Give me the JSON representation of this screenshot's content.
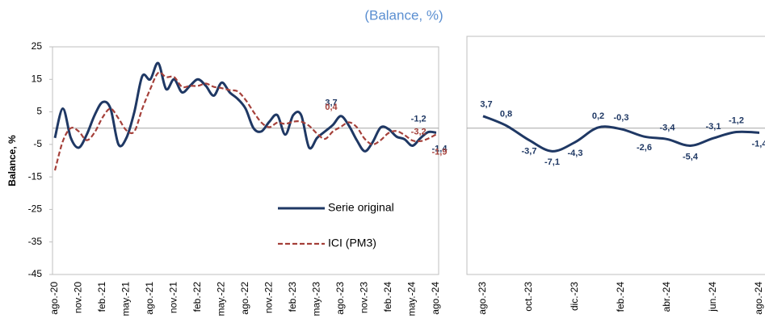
{
  "chart_data": [
    {
      "type": "line",
      "subtitle": "(Balance, %)",
      "y_label": "Balance, %",
      "categories": [
        "ago.-20",
        null,
        null,
        "nov.-20",
        null,
        null,
        "feb.-21",
        null,
        null,
        "may.-21",
        null,
        null,
        "ago.-21",
        null,
        null,
        "nov.-21",
        null,
        null,
        "feb.-22",
        null,
        null,
        "may.-22",
        null,
        null,
        "ago.-22",
        null,
        null,
        "nov.-22",
        null,
        null,
        "feb.-23",
        null,
        null,
        "may.-23",
        null,
        null,
        "ago.-23",
        null,
        null,
        "nov.-23",
        null,
        null,
        "feb.-24",
        null,
        null,
        "may.-24",
        null,
        null,
        "ago.-24"
      ],
      "series": [
        {
          "name": "Serie original",
          "color": "#1f3864",
          "dash": false,
          "values": [
            -3,
            6,
            -3,
            -6,
            -2,
            4,
            8,
            6,
            -5,
            -3,
            5,
            16,
            15,
            20,
            12,
            15,
            11,
            13,
            15,
            13,
            10,
            14,
            11,
            9,
            6,
            0,
            -1,
            2,
            4,
            -2,
            4,
            4,
            -6,
            -3,
            -1,
            1,
            3.7,
            0.8,
            -3.7,
            -7.1,
            -4.3,
            0.2,
            -0.3,
            -2.6,
            -3.4,
            -5.4,
            -3.1,
            -1.2,
            -1.4
          ],
          "value_labels": [
            null,
            null,
            null,
            null,
            null,
            null,
            null,
            null,
            null,
            null,
            null,
            null,
            null,
            null,
            null,
            null,
            null,
            null,
            null,
            null,
            null,
            null,
            null,
            null,
            null,
            null,
            null,
            null,
            null,
            null,
            null,
            null,
            null,
            null,
            null,
            null,
            "3,7",
            null,
            null,
            null,
            null,
            null,
            null,
            null,
            null,
            null,
            null,
            "-1,2",
            "-1,4"
          ]
        },
        {
          "name": "ICI (PM3)",
          "color": "#a5403a",
          "dash": true,
          "values": [
            -13,
            -4,
            0,
            -1,
            -3.7,
            -1.3,
            3.3,
            6,
            3,
            -0.7,
            -1,
            6,
            12,
            17,
            15.7,
            15.7,
            12.7,
            13,
            13,
            13.7,
            12.7,
            12.3,
            11.7,
            11.3,
            8.7,
            5,
            1.7,
            0.3,
            1.7,
            1.3,
            2,
            2,
            0.7,
            -1.7,
            -3.3,
            -1,
            0.4,
            1.8,
            0.3,
            -3.3,
            -5,
            -3.7,
            -1.5,
            -0.9,
            -2.1,
            -3.8,
            -4,
            -3.2,
            -1.9
          ],
          "value_labels": [
            null,
            null,
            null,
            null,
            null,
            null,
            null,
            null,
            null,
            null,
            null,
            null,
            null,
            null,
            null,
            null,
            null,
            null,
            null,
            null,
            null,
            null,
            null,
            null,
            null,
            null,
            null,
            null,
            null,
            null,
            null,
            null,
            null,
            null,
            null,
            null,
            "0,4",
            null,
            null,
            null,
            null,
            null,
            null,
            null,
            null,
            null,
            null,
            "-3,2",
            "-1,9"
          ]
        }
      ],
      "ylim": [
        -45,
        25
      ],
      "yticks": [
        -45,
        -35,
        -25,
        -15,
        -5,
        5,
        15,
        25
      ]
    },
    {
      "type": "line",
      "categories": [
        "ago.-23",
        null,
        "oct.-23",
        null,
        "dic.-23",
        null,
        "feb.-24",
        null,
        "abr.-24",
        null,
        "jun.-24",
        null,
        "ago.-24"
      ],
      "color": "#1f3864",
      "values": [
        3.7,
        0.8,
        -3.7,
        -7.1,
        -4.3,
        0.2,
        -0.3,
        -2.6,
        -3.4,
        -5.4,
        -3.1,
        -1.2,
        -1.4
      ],
      "value_labels": [
        "3,7",
        "0,8",
        "-3,7",
        "-7,1",
        "-4,3",
        "0,2",
        "-0,3",
        "-2,6",
        "-3,4",
        "-5,4",
        "-3,1",
        "-1,2",
        "-1,4"
      ],
      "ylim": [
        -45,
        25
      ]
    }
  ]
}
